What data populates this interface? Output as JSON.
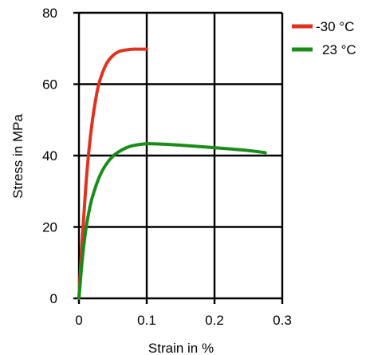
{
  "chart_data": {
    "type": "line",
    "title": "",
    "xlabel": "Strain in %",
    "ylabel": "Stress in MPa",
    "xlim": [
      0,
      0.3
    ],
    "ylim": [
      0,
      80
    ],
    "x_ticks": [
      "0",
      "0.1",
      "0.2",
      "0.3"
    ],
    "y_ticks": [
      "0",
      "20",
      "40",
      "60",
      "80"
    ],
    "x_tick_values": [
      0,
      0.1,
      0.2,
      0.3
    ],
    "y_tick_values": [
      0,
      20,
      40,
      60,
      80
    ],
    "grid": true,
    "legend_position": "top-right",
    "series": [
      {
        "name": "-30 °C",
        "color": "#e0321e",
        "x": [
          0,
          0.005,
          0.01,
          0.015,
          0.02,
          0.025,
          0.03,
          0.04,
          0.05,
          0.06,
          0.07,
          0.08,
          0.09,
          0.1
        ],
        "y": [
          0,
          17,
          31,
          42,
          50,
          56,
          60.5,
          65.5,
          68,
          69.2,
          69.6,
          69.8,
          69.8,
          69.8
        ]
      },
      {
        "name": "23 °C",
        "color": "#1a8c1a",
        "x": [
          0,
          0.005,
          0.01,
          0.015,
          0.02,
          0.03,
          0.04,
          0.05,
          0.06,
          0.07,
          0.08,
          0.1,
          0.12,
          0.15,
          0.2,
          0.25,
          0.275
        ],
        "y": [
          0,
          11,
          19,
          24.5,
          28.5,
          34,
          37.5,
          39.8,
          41.2,
          42.2,
          42.8,
          43.3,
          43.2,
          42.9,
          42.2,
          41.4,
          40.8
        ]
      }
    ]
  }
}
